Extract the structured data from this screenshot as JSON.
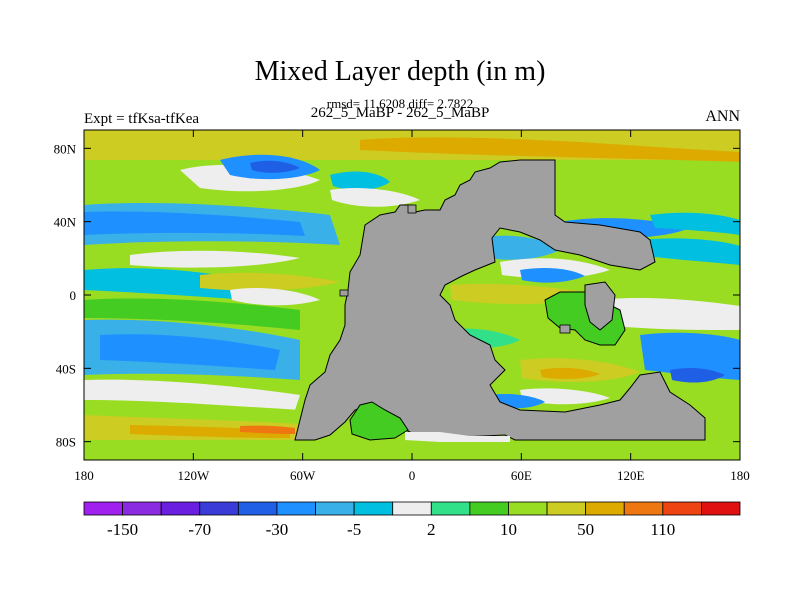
{
  "chart_data": {
    "type": "heatmap",
    "title": "Mixed Layer depth (in m)",
    "stats_text": "rmsd= 11.6208 diff= 2.7822",
    "subtitle": "262_5_MaBP - 262_5_MaBP",
    "left_label": "Expt = tfKsa-tfKea",
    "right_label": "ANN",
    "x_ticks": [
      "180",
      "120W",
      "60W",
      "0",
      "60E",
      "120E",
      "180"
    ],
    "y_ticks": [
      "80N",
      "40N",
      "0",
      "40S",
      "80S"
    ],
    "x_range": [
      -180,
      180
    ],
    "y_range": [
      -90,
      90
    ],
    "land_color": "#a0a0a0",
    "colorbar": {
      "colors": [
        "#a020f0",
        "#8a2be2",
        "#6a1ee0",
        "#3b3bd8",
        "#1e5fe6",
        "#1e90ff",
        "#3ab0e8",
        "#00bfe0",
        "#eeeeee",
        "#33e08a",
        "#44cc22",
        "#99dd22",
        "#cccc22",
        "#ddaa00",
        "#ee7711",
        "#ee4411",
        "#e01010"
      ],
      "labels": [
        "-150",
        "-70",
        "-30",
        "-5",
        "2",
        "10",
        "50",
        "110"
      ]
    }
  }
}
